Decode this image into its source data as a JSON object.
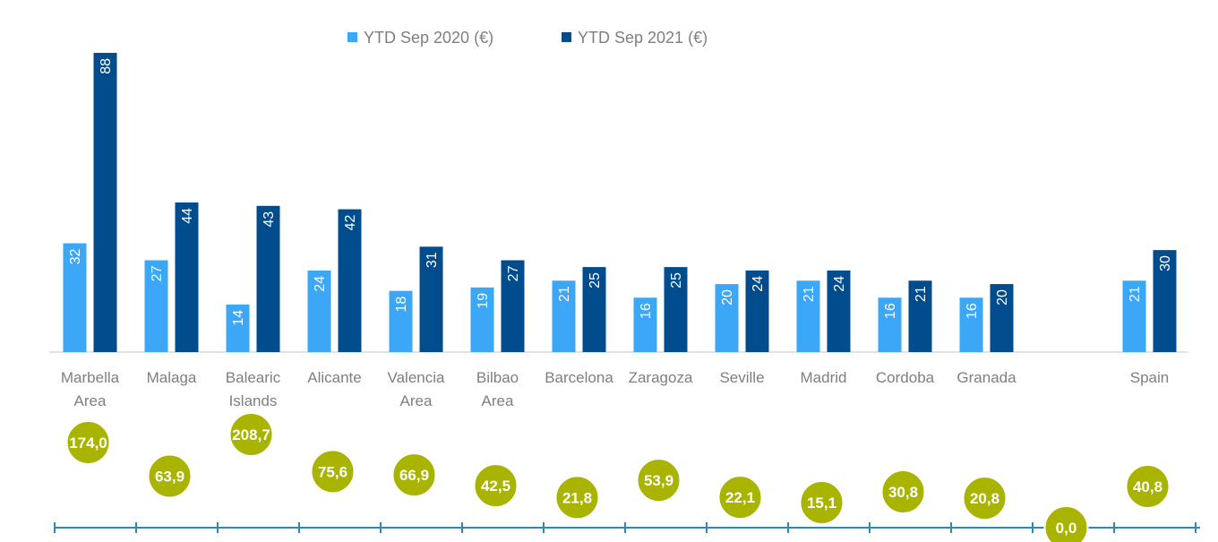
{
  "chart_data": {
    "type": "bar",
    "legend_position": "top",
    "categories": [
      [
        "Marbella",
        "Area"
      ],
      [
        "Malaga"
      ],
      [
        "Balearic",
        "Islands"
      ],
      [
        "Alicante"
      ],
      [
        "Valencia",
        "Area"
      ],
      [
        "Bilbao",
        "Area"
      ],
      [
        "Barcelona"
      ],
      [
        "Zaragoza"
      ],
      [
        "Seville"
      ],
      [
        "Madrid"
      ],
      [
        "Cordoba"
      ],
      [
        "Granada"
      ],
      [],
      [
        "Spain"
      ]
    ],
    "series": [
      {
        "name": "YTD Sep 2020 (€)",
        "color": "#3ca6f7",
        "values": [
          32,
          27,
          14,
          24,
          18,
          19,
          21,
          16,
          20,
          21,
          16,
          16,
          null,
          21
        ]
      },
      {
        "name": "YTD Sep 2021 (€)",
        "color": "#004c8c",
        "values": [
          88,
          44,
          43,
          42,
          31,
          27,
          25,
          25,
          24,
          24,
          21,
          20,
          null,
          30
        ]
      }
    ],
    "bubbles": {
      "color": "#a8b400",
      "values": [
        174.0,
        63.9,
        208.7,
        75.6,
        66.9,
        42.5,
        21.8,
        53.9,
        22.1,
        15.1,
        30.8,
        20.8,
        0.0,
        40.8
      ],
      "labels": [
        "174,0",
        "63,9",
        "208,7",
        "75,6",
        "66,9",
        "42,5",
        "21,8",
        "53,9",
        "22,1",
        "15,1",
        "30,8",
        "20,8",
        "0,0",
        "40,8"
      ]
    },
    "ylim": [
      0,
      88
    ],
    "grid": false,
    "axis_color": "#2a8cb6"
  }
}
